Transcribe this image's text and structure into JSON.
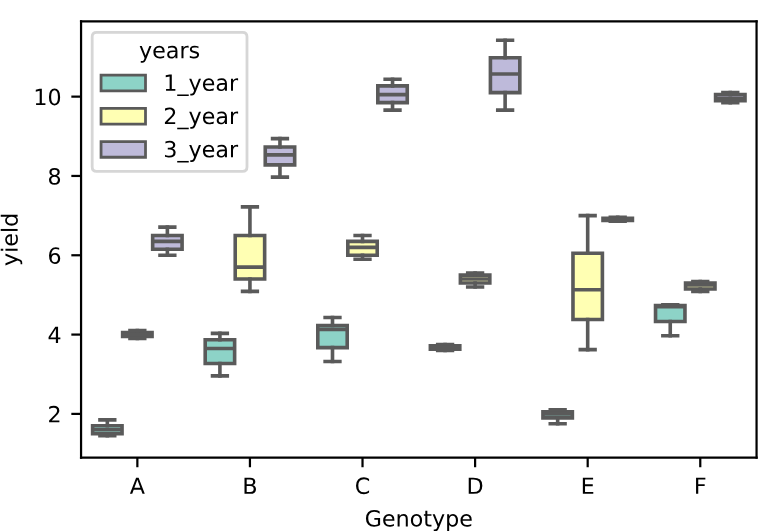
{
  "chart_data": {
    "type": "box",
    "xlabel": "Genotype",
    "ylabel": "yield",
    "legend_title": "years",
    "legend": "top left",
    "grid": false,
    "categories": [
      "A",
      "B",
      "C",
      "D",
      "E",
      "F"
    ],
    "ylim": [
      0.9,
      11.9
    ],
    "yticks": [
      2,
      4,
      6,
      8,
      10
    ],
    "series": [
      {
        "name": "1_year",
        "color": "#8dd3c7",
        "boxes": [
          {
            "low": 1.45,
            "q1": 1.5,
            "median": 1.6,
            "q3": 1.7,
            "high": 1.85
          },
          {
            "low": 2.96,
            "q1": 3.27,
            "median": 3.65,
            "q3": 3.87,
            "high": 4.03
          },
          {
            "low": 3.32,
            "q1": 3.67,
            "median": 4.13,
            "q3": 4.23,
            "high": 4.43
          },
          {
            "low": 3.6,
            "q1": 3.63,
            "median": 3.67,
            "q3": 3.72,
            "high": 3.75
          },
          {
            "low": 1.75,
            "q1": 1.9,
            "median": 2.0,
            "q3": 2.05,
            "high": 2.1
          },
          {
            "low": 3.97,
            "q1": 4.33,
            "median": 4.7,
            "q3": 4.73,
            "high": 4.75
          }
        ]
      },
      {
        "name": "2_year",
        "color": "#ffffb3",
        "boxes": [
          {
            "low": 3.9,
            "q1": 3.95,
            "median": 4.0,
            "q3": 4.05,
            "high": 4.1
          },
          {
            "low": 5.09,
            "q1": 5.4,
            "median": 5.7,
            "q3": 6.5,
            "high": 7.22
          },
          {
            "low": 5.9,
            "q1": 6.0,
            "median": 6.2,
            "q3": 6.35,
            "high": 6.5
          },
          {
            "low": 5.2,
            "q1": 5.3,
            "median": 5.4,
            "q3": 5.5,
            "high": 5.55
          },
          {
            "low": 3.62,
            "q1": 4.38,
            "median": 5.13,
            "q3": 6.05,
            "high": 7.0
          },
          {
            "low": 5.09,
            "q1": 5.15,
            "median": 5.25,
            "q3": 5.3,
            "high": 5.34
          }
        ]
      },
      {
        "name": "3_year",
        "color": "#bebada",
        "boxes": [
          {
            "low": 6.0,
            "q1": 6.15,
            "median": 6.35,
            "q3": 6.5,
            "high": 6.71
          },
          {
            "low": 7.97,
            "q1": 8.28,
            "median": 8.53,
            "q3": 8.73,
            "high": 8.94
          },
          {
            "low": 9.66,
            "q1": 9.85,
            "median": 10.05,
            "q3": 10.27,
            "high": 10.44
          },
          {
            "low": 9.66,
            "q1": 10.1,
            "median": 10.57,
            "q3": 10.98,
            "high": 11.42
          },
          {
            "low": 6.86,
            "q1": 6.88,
            "median": 6.9,
            "q3": 6.93,
            "high": 6.96
          },
          {
            "low": 9.85,
            "q1": 9.9,
            "median": 9.95,
            "q3": 10.05,
            "high": 10.1
          }
        ]
      }
    ]
  }
}
